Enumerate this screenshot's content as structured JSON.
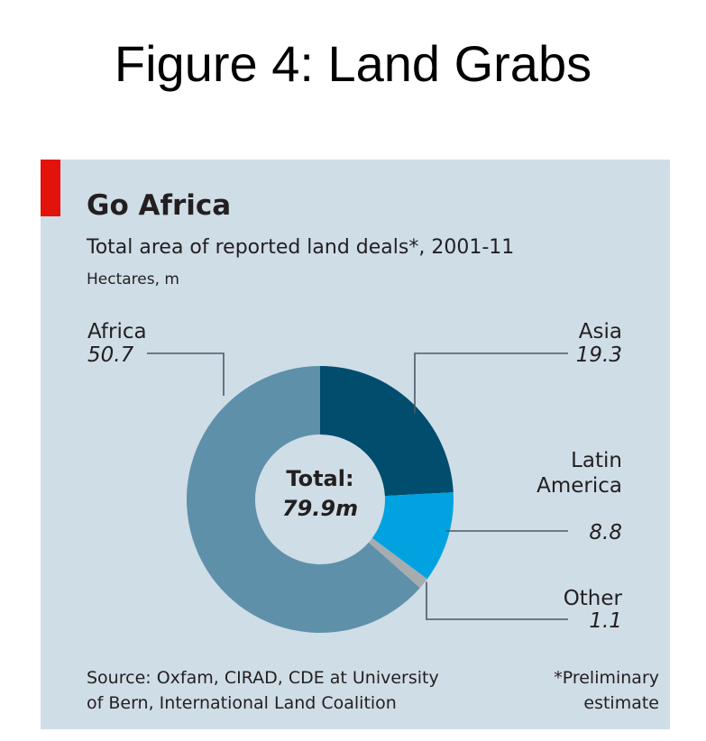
{
  "page_title": "Figure 4: Land Grabs",
  "chart_data": {
    "type": "pie",
    "title": "Go Africa",
    "subtitle": "Total area of reported land deals*, 2001-11",
    "units": "Hectares, m",
    "center_label": "Total:",
    "center_value": "79.9m",
    "slices": [
      {
        "name": "Asia",
        "value": 19.3,
        "value_label": "19.3",
        "color": "#004d6e"
      },
      {
        "name": "Latin America",
        "name_lines": [
          "Latin",
          "America"
        ],
        "value": 8.8,
        "value_label": "8.8",
        "color": "#00a3e0"
      },
      {
        "name": "Other",
        "value": 1.1,
        "value_label": "1.1",
        "color": "#a7acb1"
      },
      {
        "name": "Africa",
        "value": 50.7,
        "value_label": "50.7",
        "color": "#5f90aa"
      }
    ]
  },
  "source_lines": [
    "Source: Oxfam, CIRAD, CDE at University",
    "of Bern, International Land Coalition"
  ],
  "note_lines": [
    "*Preliminary",
    "estimate"
  ],
  "colors": {
    "panel": "#cfdde7",
    "accent": "#e3120b",
    "leader": "#4a5a66"
  }
}
